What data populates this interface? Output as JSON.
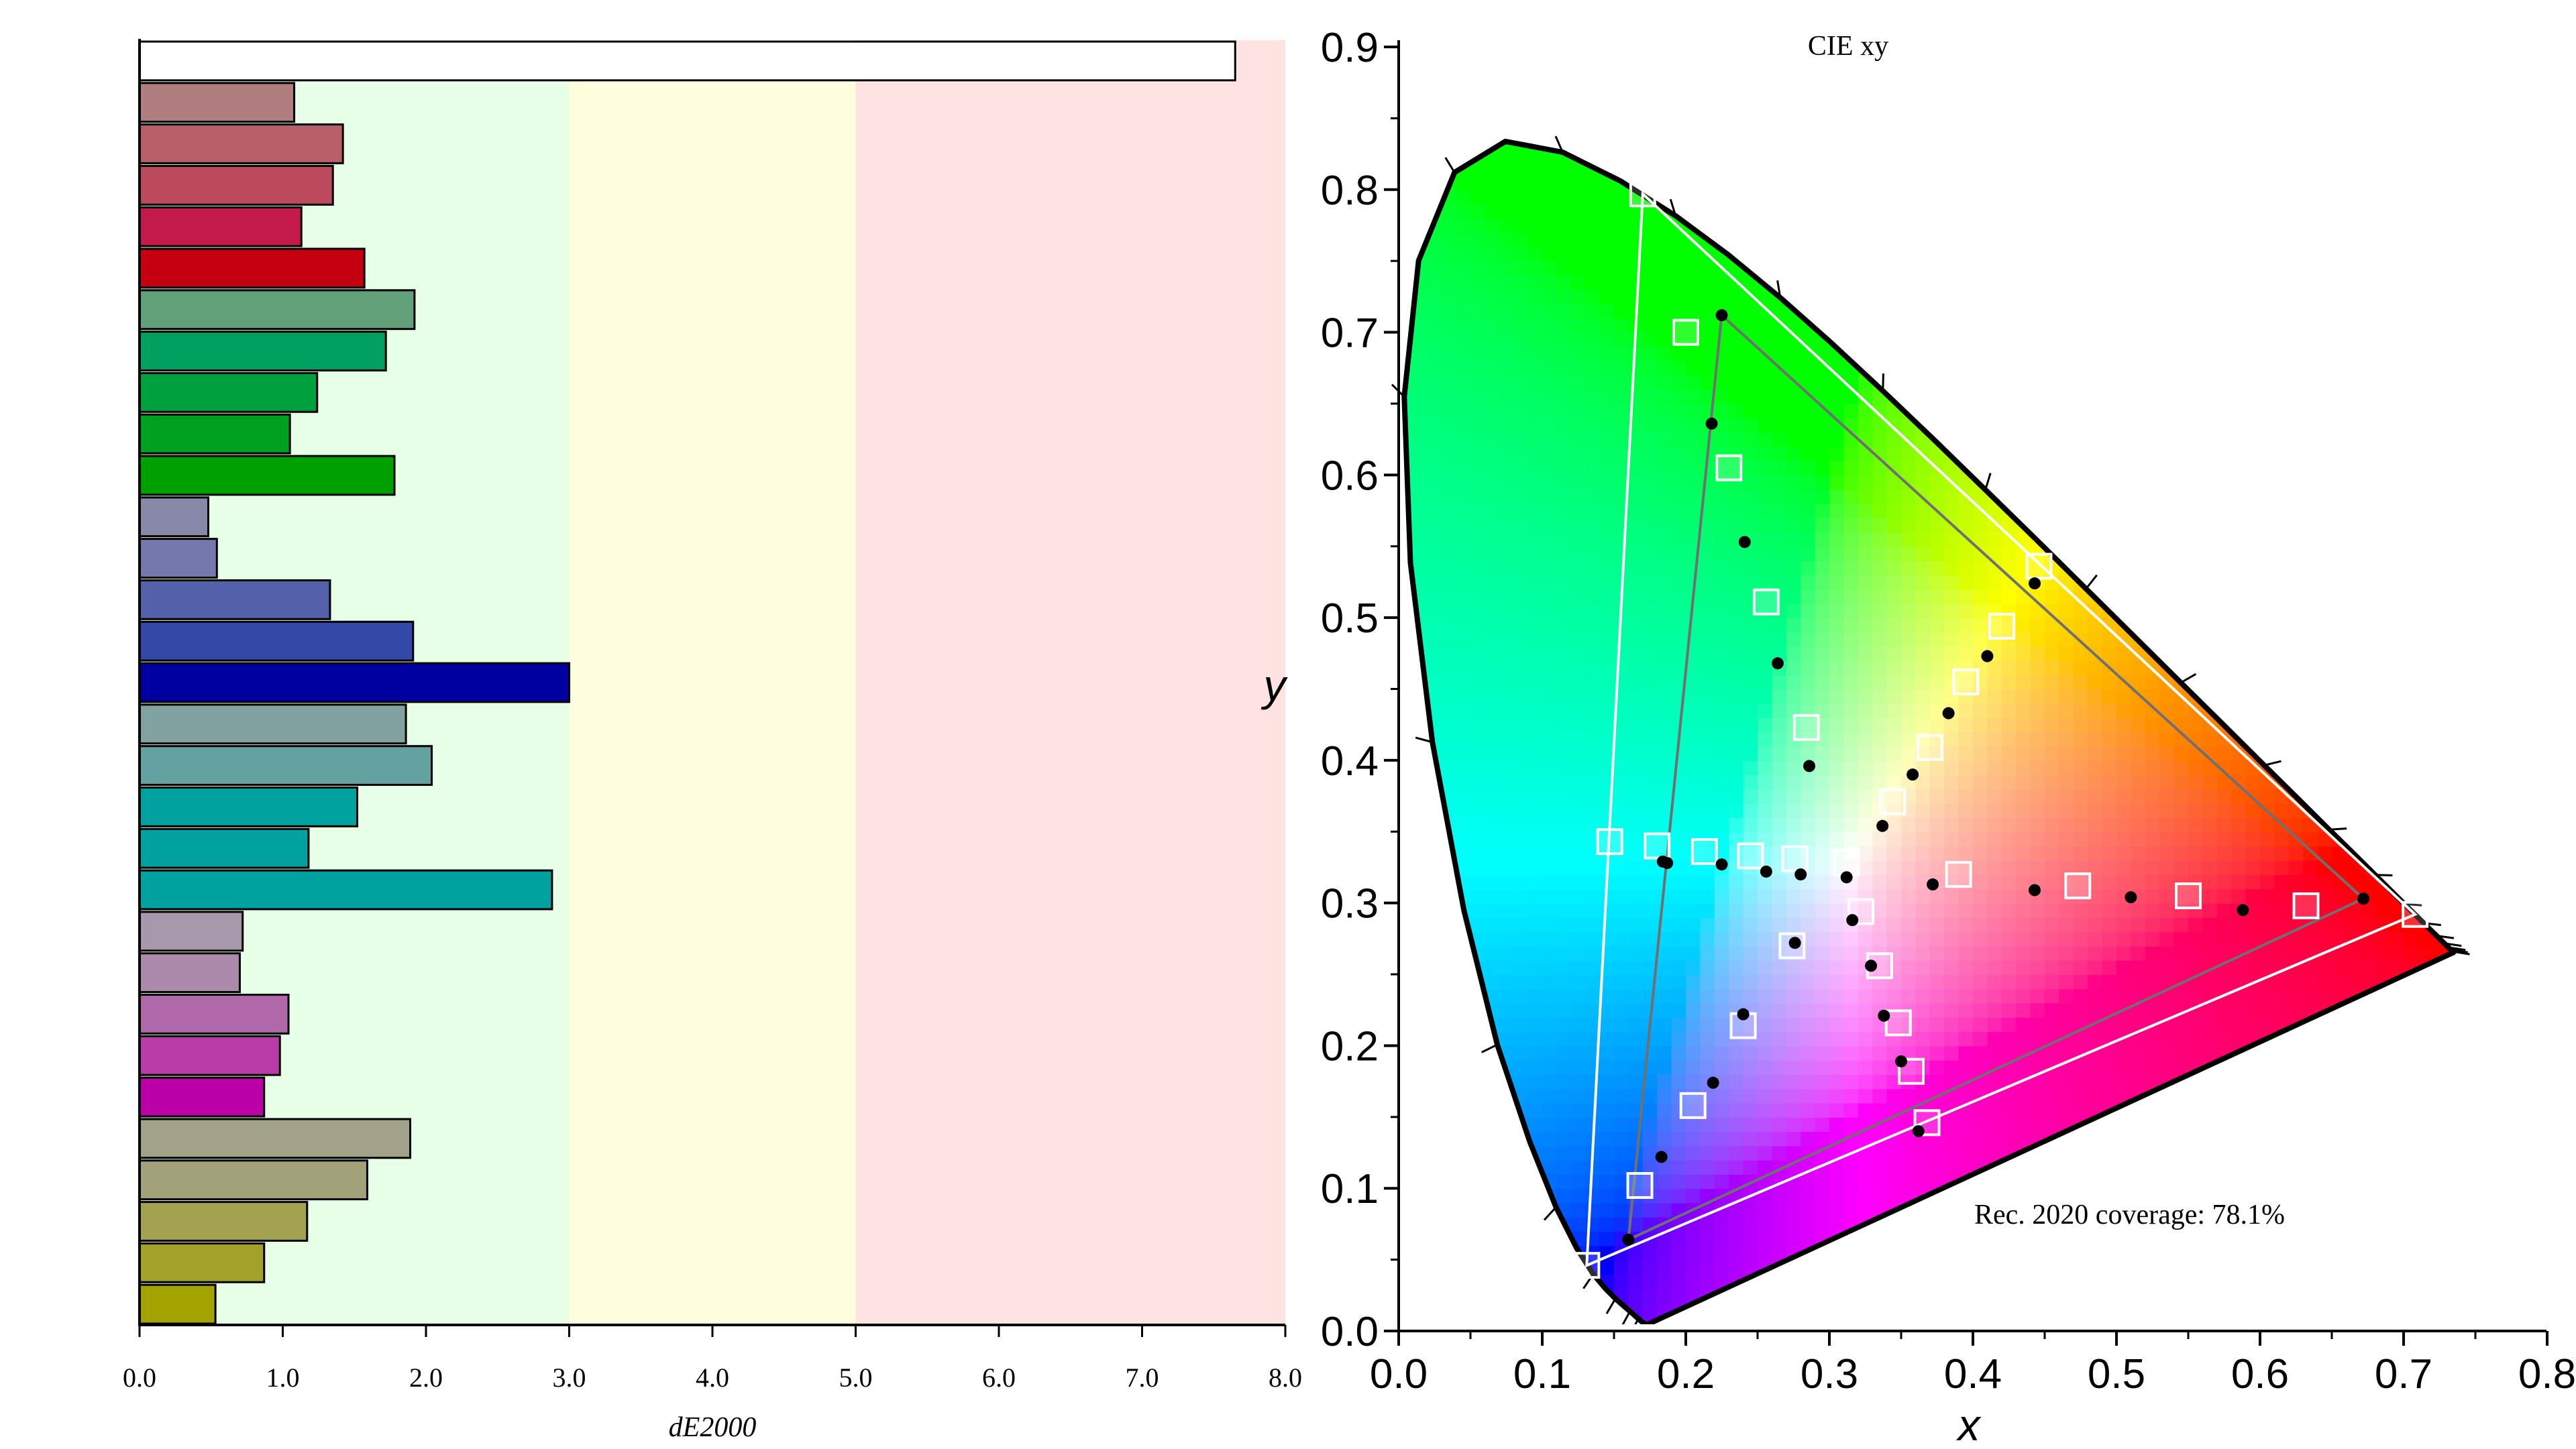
{
  "bar_chart": {
    "xlabel": "dE2000",
    "xlim": [
      0,
      8
    ],
    "x_ticks": [
      "0.0",
      "1.0",
      "2.0",
      "3.0",
      "4.0",
      "5.0",
      "6.0",
      "7.0",
      "8.0"
    ],
    "zones": [
      {
        "from": 0,
        "to": 3,
        "color": "#e6ffe6"
      },
      {
        "from": 3,
        "to": 5,
        "color": "#ffffe0"
      },
      {
        "from": 5,
        "to": 8,
        "color": "#ffe3e3"
      }
    ]
  },
  "gamut_chart": {
    "title": "CIE xy",
    "xlabel": "x",
    "ylabel": "y",
    "x_ticks": [
      "0.0",
      "0.1",
      "0.2",
      "0.3",
      "0.4",
      "0.5",
      "0.6",
      "0.7",
      "0.8"
    ],
    "y_ticks": [
      "0.0",
      "0.1",
      "0.2",
      "0.3",
      "0.4",
      "0.5",
      "0.6",
      "0.7",
      "0.8",
      "0.9"
    ],
    "annotation": "Rec. 2020 coverage: 78.1%"
  },
  "chart_data": [
    {
      "type": "bar",
      "orientation": "horizontal",
      "xlabel": "dE2000",
      "xlim": [
        0,
        8
      ],
      "bars": [
        {
          "value": 7.65,
          "color": "#ffffff"
        },
        {
          "value": 1.08,
          "color": "#b07e7e"
        },
        {
          "value": 1.42,
          "color": "#b8606a"
        },
        {
          "value": 1.35,
          "color": "#bb4a5c"
        },
        {
          "value": 1.13,
          "color": "#c41a4a"
        },
        {
          "value": 1.57,
          "color": "#c40010"
        },
        {
          "value": 1.92,
          "color": "#62a07a"
        },
        {
          "value": 1.72,
          "color": "#00a060"
        },
        {
          "value": 1.24,
          "color": "#00a03c"
        },
        {
          "value": 1.05,
          "color": "#00a020"
        },
        {
          "value": 1.78,
          "color": "#00a000"
        },
        {
          "value": 0.48,
          "color": "#8888a8"
        },
        {
          "value": 0.54,
          "color": "#7478ac"
        },
        {
          "value": 1.33,
          "color": "#5460aa"
        },
        {
          "value": 1.91,
          "color": "#3448a8"
        },
        {
          "value": 3.0,
          "color": "#0000a0"
        },
        {
          "value": 1.86,
          "color": "#82a2a2"
        },
        {
          "value": 2.04,
          "color": "#64a2a2"
        },
        {
          "value": 1.52,
          "color": "#00a2a0"
        },
        {
          "value": 1.18,
          "color": "#00a2a0"
        },
        {
          "value": 2.88,
          "color": "#00a2a0"
        },
        {
          "value": 0.72,
          "color": "#a898ac"
        },
        {
          "value": 0.7,
          "color": "#ac8aac"
        },
        {
          "value": 1.04,
          "color": "#b068aa"
        },
        {
          "value": 0.98,
          "color": "#ba3ca8"
        },
        {
          "value": 0.87,
          "color": "#bc00a8"
        },
        {
          "value": 1.89,
          "color": "#a2a28a"
        },
        {
          "value": 1.59,
          "color": "#a2a27a"
        },
        {
          "value": 1.17,
          "color": "#a2a250"
        },
        {
          "value": 0.87,
          "color": "#a2a22a"
        },
        {
          "value": 0.53,
          "color": "#a2a200"
        }
      ]
    },
    {
      "type": "scatter",
      "title": "CIE xy",
      "xlabel": "x",
      "ylabel": "y",
      "xlim": [
        0,
        0.8
      ],
      "ylim": [
        0,
        0.9
      ],
      "background": "CIE 1931 spectral locus",
      "gamut_reference": [
        [
          0.708,
          0.292
        ],
        [
          0.17,
          0.797
        ],
        [
          0.131,
          0.046
        ]
      ],
      "gamut_measured": [
        [
          0.672,
          0.303
        ],
        [
          0.225,
          0.712
        ],
        [
          0.16,
          0.064
        ]
      ],
      "target_points": [
        [
          0.17,
          0.797
        ],
        [
          0.2,
          0.7
        ],
        [
          0.23,
          0.605
        ],
        [
          0.256,
          0.511
        ],
        [
          0.284,
          0.423
        ],
        [
          0.147,
          0.343
        ],
        [
          0.18,
          0.34
        ],
        [
          0.213,
          0.336
        ],
        [
          0.245,
          0.333
        ],
        [
          0.276,
          0.331
        ],
        [
          0.312,
          0.328
        ],
        [
          0.39,
          0.32
        ],
        [
          0.473,
          0.312
        ],
        [
          0.55,
          0.305
        ],
        [
          0.632,
          0.298
        ],
        [
          0.708,
          0.292
        ],
        [
          0.446,
          0.536
        ],
        [
          0.42,
          0.494
        ],
        [
          0.395,
          0.455
        ],
        [
          0.37,
          0.409
        ],
        [
          0.344,
          0.371
        ],
        [
          0.322,
          0.294
        ],
        [
          0.335,
          0.256
        ],
        [
          0.348,
          0.216
        ],
        [
          0.357,
          0.182
        ],
        [
          0.368,
          0.146
        ],
        [
          0.274,
          0.27
        ],
        [
          0.24,
          0.214
        ],
        [
          0.205,
          0.158
        ],
        [
          0.168,
          0.102
        ],
        [
          0.131,
          0.046
        ]
      ],
      "measured_points": [
        [
          0.225,
          0.712
        ],
        [
          0.218,
          0.636
        ],
        [
          0.241,
          0.553
        ],
        [
          0.264,
          0.468
        ],
        [
          0.286,
          0.396
        ],
        [
          0.184,
          0.329
        ],
        [
          0.187,
          0.328
        ],
        [
          0.225,
          0.327
        ],
        [
          0.256,
          0.322
        ],
        [
          0.28,
          0.32
        ],
        [
          0.312,
          0.318
        ],
        [
          0.372,
          0.313
        ],
        [
          0.443,
          0.309
        ],
        [
          0.51,
          0.304
        ],
        [
          0.588,
          0.295
        ],
        [
          0.672,
          0.303
        ],
        [
          0.443,
          0.524
        ],
        [
          0.41,
          0.473
        ],
        [
          0.383,
          0.433
        ],
        [
          0.358,
          0.39
        ],
        [
          0.337,
          0.354
        ],
        [
          0.316,
          0.288
        ],
        [
          0.329,
          0.256
        ],
        [
          0.338,
          0.221
        ],
        [
          0.35,
          0.189
        ],
        [
          0.362,
          0.14
        ],
        [
          0.276,
          0.272
        ],
        [
          0.24,
          0.222
        ],
        [
          0.219,
          0.174
        ],
        [
          0.183,
          0.122
        ],
        [
          0.16,
          0.064
        ]
      ]
    }
  ]
}
